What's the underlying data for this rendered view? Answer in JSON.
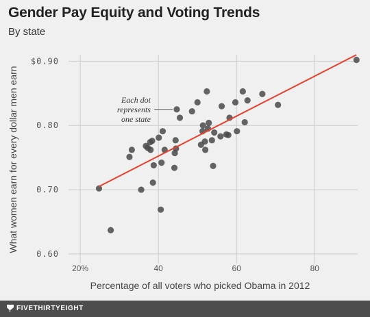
{
  "header": {
    "title": "Gender Pay Equity and Voting Trends",
    "subtitle": "By state"
  },
  "footer": {
    "brand": "FIVETHIRTYEIGHT"
  },
  "colors": {
    "background": "#f0f0f0",
    "dot": "#4a4a4a",
    "trendline": "#e8402c",
    "grid": "#cccccc",
    "footer": "#4d4d4d"
  },
  "chart_data": {
    "type": "scatter",
    "title": "Gender Pay Equity and Voting Trends",
    "subtitle": "By state",
    "xlabel": "Percentage of all voters who picked Obama in 2012",
    "ylabel": "What women earn for every dollar men earn",
    "xlim": [
      17,
      91
    ],
    "ylim": [
      0.585,
      0.91
    ],
    "x_ticks": [
      20,
      40,
      60,
      80
    ],
    "x_tick_labels": [
      "20%",
      "40",
      "60",
      "80"
    ],
    "y_ticks": [
      0.6,
      0.7,
      0.8,
      0.9
    ],
    "y_tick_labels": [
      "0.60",
      "0.70",
      "0.80",
      "$0.90"
    ],
    "grid": "both",
    "annotation": {
      "lines": [
        "Each dot",
        "represents",
        "one state"
      ],
      "points_to": [
        44.7,
        0.825
      ]
    },
    "trendline": {
      "x": [
        24.8,
        90.7
      ],
      "y": [
        0.705,
        0.91
      ]
    },
    "points": [
      [
        24.8,
        0.702
      ],
      [
        27.8,
        0.637
      ],
      [
        32.6,
        0.751
      ],
      [
        33.2,
        0.762
      ],
      [
        35.6,
        0.7
      ],
      [
        36.8,
        0.768
      ],
      [
        37.3,
        0.765
      ],
      [
        37.9,
        0.774
      ],
      [
        38.0,
        0.762
      ],
      [
        38.4,
        0.776
      ],
      [
        38.6,
        0.711
      ],
      [
        38.8,
        0.738
      ],
      [
        40.1,
        0.781
      ],
      [
        40.6,
        0.669
      ],
      [
        40.8,
        0.742
      ],
      [
        41.1,
        0.791
      ],
      [
        41.6,
        0.762
      ],
      [
        44.1,
        0.734
      ],
      [
        44.2,
        0.757
      ],
      [
        44.4,
        0.777
      ],
      [
        44.7,
        0.825
      ],
      [
        45.5,
        0.812
      ],
      [
        44.5,
        0.764
      ],
      [
        48.6,
        0.822
      ],
      [
        50.0,
        0.836
      ],
      [
        50.9,
        0.77
      ],
      [
        51.3,
        0.791
      ],
      [
        51.4,
        0.8
      ],
      [
        51.9,
        0.775
      ],
      [
        52.0,
        0.762
      ],
      [
        52.4,
        0.853
      ],
      [
        52.7,
        0.795
      ],
      [
        52.9,
        0.804
      ],
      [
        53.7,
        0.777
      ],
      [
        54.0,
        0.737
      ],
      [
        54.3,
        0.789
      ],
      [
        55.9,
        0.783
      ],
      [
        56.2,
        0.83
      ],
      [
        57.4,
        0.786
      ],
      [
        57.9,
        0.785
      ],
      [
        58.2,
        0.812
      ],
      [
        59.7,
        0.836
      ],
      [
        60.1,
        0.791
      ],
      [
        61.6,
        0.853
      ],
      [
        62.1,
        0.805
      ],
      [
        62.8,
        0.839
      ],
      [
        66.6,
        0.849
      ],
      [
        70.6,
        0.832
      ],
      [
        90.7,
        0.902
      ]
    ]
  }
}
